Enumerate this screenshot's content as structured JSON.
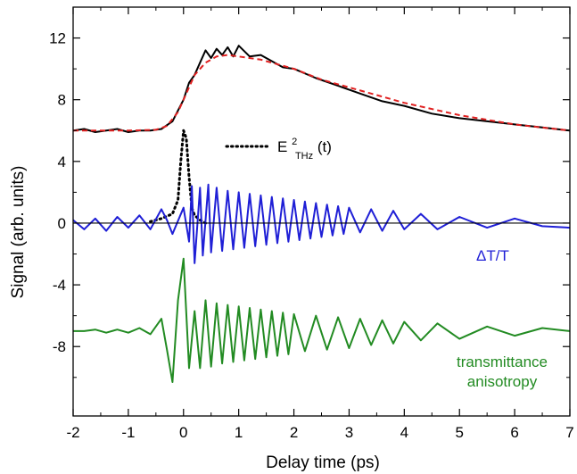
{
  "chart_data": {
    "type": "line",
    "title": "",
    "xlabel": "Delay time (ps)",
    "ylabel": "Signal (arb. units)",
    "xlim": [
      -2,
      7
    ],
    "ylim": [
      -12.5,
      14
    ],
    "x_ticks": [
      -2,
      -1,
      0,
      1,
      2,
      3,
      4,
      5,
      6,
      7
    ],
    "y_ticks": [
      -8,
      -4,
      0,
      4,
      8,
      12
    ],
    "grid": false,
    "annotations": [
      {
        "text": "ΔT/T",
        "color": "#1f1fd6"
      },
      {
        "text": "transmittance",
        "color": "#228b22"
      },
      {
        "text": "anisotropy",
        "color": "#228b22"
      }
    ],
    "legend": {
      "symbol": "E",
      "superscript": "2",
      "subscript": "THz",
      "suffix": "(t)"
    },
    "series": [
      {
        "style": "solid",
        "color": "#000000",
        "x": [
          -2.0,
          -1.8,
          -1.6,
          -1.4,
          -1.2,
          -1.0,
          -0.8,
          -0.6,
          -0.4,
          -0.2,
          0.0,
          0.1,
          0.2,
          0.3,
          0.4,
          0.5,
          0.6,
          0.7,
          0.8,
          0.9,
          1.0,
          1.2,
          1.4,
          1.6,
          1.8,
          2.0,
          2.4,
          2.8,
          3.2,
          3.6,
          4.0,
          4.5,
          5.0,
          5.5,
          6.0,
          6.5,
          7.0
        ],
        "values": [
          6.0,
          6.1,
          5.9,
          6.0,
          6.1,
          5.9,
          6.0,
          6.0,
          6.1,
          6.6,
          8.0,
          9.1,
          9.6,
          10.4,
          11.2,
          10.7,
          11.3,
          10.9,
          11.4,
          10.8,
          11.5,
          10.8,
          10.9,
          10.5,
          10.1,
          10.0,
          9.4,
          8.9,
          8.4,
          7.9,
          7.6,
          7.1,
          6.8,
          6.6,
          6.4,
          6.2,
          6.0
        ]
      },
      {
        "style": "dashed",
        "color": "#e02020",
        "x": [
          -2.0,
          -1.5,
          -1.0,
          -0.5,
          -0.3,
          -0.1,
          0.0,
          0.2,
          0.4,
          0.6,
          0.8,
          1.0,
          1.4,
          2.0,
          2.5,
          3.0,
          3.5,
          4.0,
          5.0,
          6.0,
          7.0
        ],
        "values": [
          6.0,
          6.0,
          6.0,
          6.05,
          6.3,
          7.2,
          8.0,
          9.6,
          10.4,
          10.8,
          10.9,
          10.8,
          10.6,
          10.0,
          9.3,
          8.8,
          8.3,
          7.8,
          7.0,
          6.4,
          6.0
        ]
      },
      {
        "name": "E²THz(t)",
        "style": "dotted",
        "color": "#000000",
        "x": [
          -0.6,
          -0.4,
          -0.2,
          -0.1,
          -0.05,
          0.0,
          0.05,
          0.1,
          0.15,
          0.2,
          0.3,
          0.4
        ],
        "values": [
          0.1,
          0.3,
          0.6,
          1.5,
          4.0,
          6.0,
          5.5,
          3.0,
          1.0,
          0.5,
          0.2,
          0.0
        ]
      },
      {
        "name": "ΔT/T",
        "style": "solid",
        "color": "#1f1fd6",
        "x": [
          -2.0,
          -1.8,
          -1.6,
          -1.4,
          -1.2,
          -1.0,
          -0.8,
          -0.6,
          -0.4,
          -0.3,
          -0.2,
          0.0,
          0.1,
          0.15,
          0.2,
          0.3,
          0.35,
          0.45,
          0.5,
          0.6,
          0.7,
          0.8,
          0.9,
          1.0,
          1.1,
          1.2,
          1.3,
          1.4,
          1.5,
          1.6,
          1.7,
          1.8,
          1.9,
          2.0,
          2.1,
          2.2,
          2.3,
          2.4,
          2.5,
          2.6,
          2.7,
          2.8,
          2.9,
          3.0,
          3.2,
          3.4,
          3.6,
          3.8,
          4.0,
          4.3,
          4.6,
          5.0,
          5.5,
          6.0,
          6.5,
          7.0
        ],
        "values": [
          0.2,
          -0.4,
          0.3,
          -0.5,
          0.4,
          -0.3,
          0.5,
          -0.4,
          0.9,
          0.2,
          -0.7,
          1.0,
          -1.2,
          2.4,
          -2.6,
          2.3,
          -2.1,
          2.5,
          -1.9,
          2.3,
          -1.8,
          2.1,
          -1.7,
          2.0,
          -1.6,
          1.9,
          -1.5,
          1.8,
          -1.4,
          1.7,
          -1.3,
          1.6,
          -1.2,
          1.5,
          -1.1,
          1.4,
          -1.0,
          1.3,
          -0.9,
          1.2,
          -0.8,
          1.1,
          -0.7,
          1.0,
          -0.6,
          0.9,
          -0.5,
          0.8,
          -0.4,
          0.6,
          -0.4,
          0.4,
          -0.3,
          0.3,
          -0.2,
          -0.3
        ]
      },
      {
        "name": "transmittance anisotropy",
        "style": "solid",
        "color": "#228b22",
        "x": [
          -2.0,
          -1.8,
          -1.6,
          -1.4,
          -1.2,
          -1.0,
          -0.8,
          -0.6,
          -0.4,
          -0.3,
          -0.2,
          -0.1,
          0.0,
          0.1,
          0.2,
          0.3,
          0.4,
          0.5,
          0.6,
          0.7,
          0.8,
          0.9,
          1.0,
          1.1,
          1.2,
          1.3,
          1.4,
          1.5,
          1.6,
          1.7,
          1.8,
          1.9,
          2.0,
          2.2,
          2.4,
          2.6,
          2.8,
          3.0,
          3.2,
          3.4,
          3.6,
          3.8,
          4.0,
          4.3,
          4.6,
          5.0,
          5.5,
          6.0,
          6.5,
          7.0
        ],
        "values": [
          -7.0,
          -7.0,
          -6.9,
          -7.1,
          -6.9,
          -7.1,
          -6.8,
          -7.2,
          -6.2,
          -8.2,
          -10.3,
          -5.0,
          -2.3,
          -9.4,
          -5.7,
          -9.4,
          -5.0,
          -9.3,
          -5.2,
          -9.1,
          -5.3,
          -9.0,
          -5.4,
          -8.9,
          -5.5,
          -8.8,
          -5.6,
          -8.7,
          -5.7,
          -8.6,
          -5.8,
          -8.5,
          -5.9,
          -8.3,
          -6.0,
          -8.2,
          -6.1,
          -8.1,
          -6.2,
          -7.9,
          -6.3,
          -7.8,
          -6.4,
          -7.6,
          -6.5,
          -7.5,
          -6.7,
          -7.3,
          -6.8,
          -7.0
        ]
      }
    ]
  }
}
